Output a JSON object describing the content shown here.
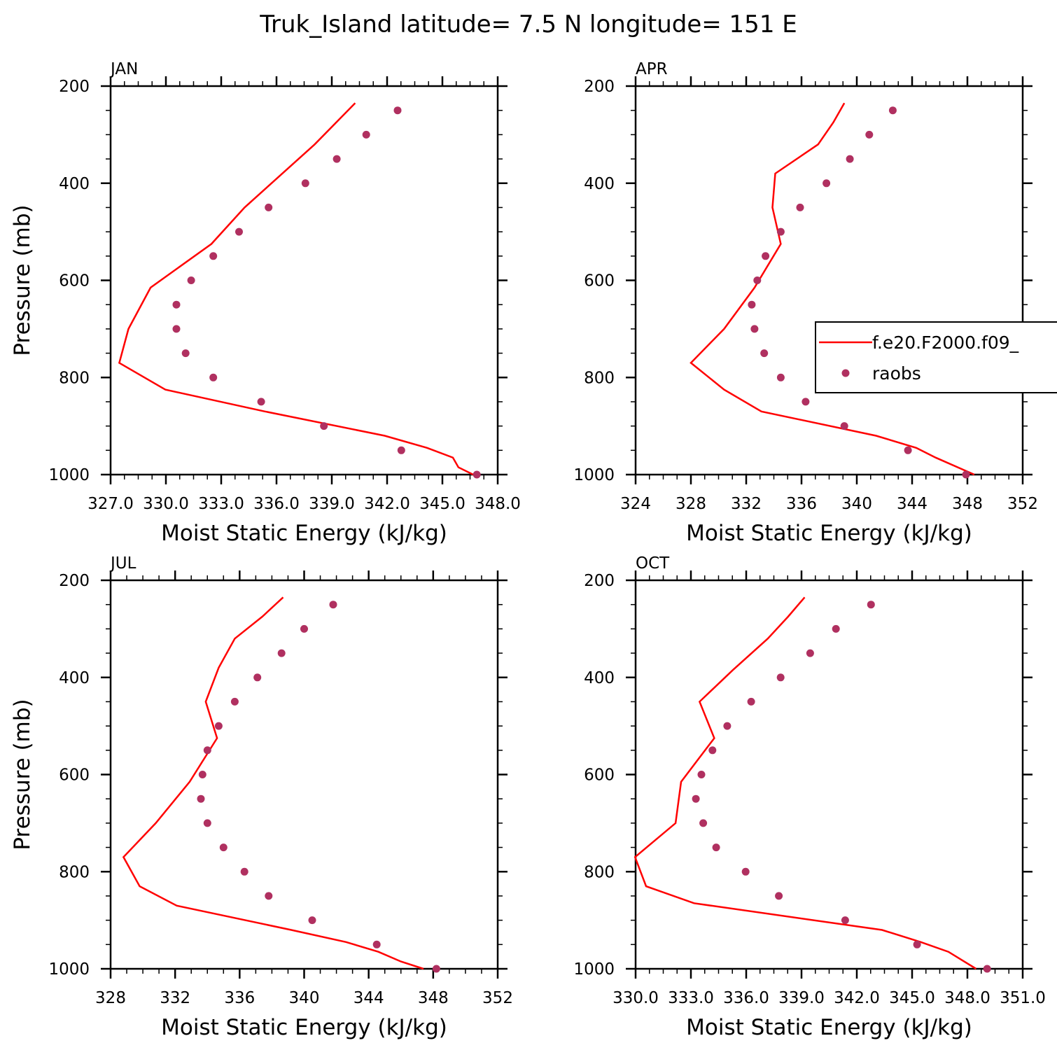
{
  "title": "Truk_Island  latitude= 7.5 N longitude= 151 E",
  "legend": {
    "model_label": "f.e20.F2000.f09_",
    "obs_label": "raobs"
  },
  "colors": {
    "model_line": "#ff0000",
    "obs_marker": "#b03060",
    "axes": "#000000",
    "background": "#ffffff"
  },
  "chart_data": [
    {
      "type": "line",
      "panel_label": "JAN",
      "xlabel": "Moist Static Energy (kJ/kg)",
      "ylabel": "Pressure (mb)",
      "xlim": [
        327.03,
        348.03
      ],
      "ylim": [
        200,
        1000
      ],
      "y_inverted": true,
      "xtick_labels": [
        "327.0",
        "330.0",
        "333.0",
        "336.0",
        "339.0",
        "342.0",
        "345.0",
        "348.0"
      ],
      "ytick_labels": [
        "200",
        "400",
        "600",
        "800",
        "1000"
      ],
      "series": [
        {
          "name": "f.e20.F2000.f09_",
          "kind": "line",
          "pressure": [
            1000,
            985,
            965,
            945,
            920,
            870,
            825,
            770,
            700,
            615,
            525,
            450,
            320,
            235
          ],
          "values": [
            346.7,
            345.9,
            345.6,
            344.2,
            341.9,
            335.4,
            330.0,
            327.5,
            328.0,
            329.2,
            332.5,
            334.3,
            338.1,
            340.3
          ]
        },
        {
          "name": "raobs",
          "kind": "scatter",
          "pressure": [
            1000,
            950,
            900,
            850,
            800,
            750,
            700,
            650,
            600,
            550,
            500,
            450,
            400,
            350,
            300,
            250
          ],
          "values": [
            346.9,
            342.8,
            338.6,
            335.2,
            332.6,
            331.1,
            330.6,
            330.6,
            331.4,
            332.6,
            334.0,
            335.6,
            337.6,
            339.3,
            340.9,
            342.6
          ]
        }
      ]
    },
    {
      "type": "line",
      "panel_label": "APR",
      "xlabel": "Moist Static Energy (kJ/kg)",
      "ylabel": "",
      "xlim": [
        324,
        352
      ],
      "ylim": [
        200,
        1000
      ],
      "y_inverted": true,
      "xtick_labels": [
        "324",
        "328",
        "332",
        "336",
        "340",
        "344",
        "348",
        "352"
      ],
      "ytick_labels": [
        "200",
        "400",
        "600",
        "800",
        "1000"
      ],
      "series": [
        {
          "name": "f.e20.F2000.f09_",
          "kind": "line",
          "pressure": [
            1000,
            965,
            945,
            920,
            870,
            825,
            770,
            700,
            615,
            525,
            450,
            380,
            320,
            275,
            235
          ],
          "values": [
            348.5,
            345.7,
            344.3,
            341.4,
            333.1,
            330.4,
            328.0,
            330.4,
            332.6,
            334.5,
            333.9,
            334.1,
            337.2,
            338.3,
            339.1
          ]
        },
        {
          "name": "raobs",
          "kind": "scatter",
          "pressure": [
            1000,
            950,
            900,
            850,
            800,
            750,
            700,
            650,
            600,
            550,
            500,
            450,
            400,
            350,
            300,
            250
          ],
          "values": [
            347.9,
            343.7,
            339.1,
            336.3,
            334.5,
            333.3,
            332.6,
            332.4,
            332.8,
            333.4,
            334.5,
            335.9,
            337.8,
            339.5,
            340.9,
            342.6
          ]
        }
      ]
    },
    {
      "type": "line",
      "panel_label": "JUL",
      "xlabel": "Moist Static Energy (kJ/kg)",
      "ylabel": "Pressure (mb)",
      "xlim": [
        328,
        352
      ],
      "ylim": [
        200,
        1000
      ],
      "y_inverted": true,
      "xtick_labels": [
        "328",
        "332",
        "336",
        "340",
        "344",
        "348",
        "352"
      ],
      "ytick_labels": [
        "200",
        "400",
        "600",
        "800",
        "1000"
      ],
      "series": [
        {
          "name": "f.e20.F2000.f09_",
          "kind": "line",
          "pressure": [
            1000,
            985,
            965,
            945,
            920,
            870,
            830,
            770,
            700,
            615,
            525,
            450,
            380,
            320,
            275,
            235
          ],
          "values": [
            347.4,
            346.0,
            344.6,
            342.6,
            339.2,
            332.1,
            329.8,
            328.8,
            330.8,
            332.9,
            334.6,
            333.9,
            334.7,
            335.7,
            337.4,
            338.7
          ]
        },
        {
          "name": "raobs",
          "kind": "scatter",
          "pressure": [
            1000,
            950,
            900,
            850,
            800,
            750,
            700,
            650,
            600,
            550,
            500,
            450,
            400,
            350,
            300,
            250
          ],
          "values": [
            348.2,
            344.5,
            340.5,
            337.8,
            336.3,
            335.0,
            334.0,
            333.6,
            333.7,
            334.0,
            334.7,
            335.7,
            337.1,
            338.6,
            340.0,
            341.8
          ]
        }
      ]
    },
    {
      "type": "line",
      "panel_label": "OCT",
      "xlabel": "Moist Static Energy (kJ/kg)",
      "ylabel": "",
      "xlim": [
        330.03,
        351.03
      ],
      "ylim": [
        200,
        1000
      ],
      "y_inverted": true,
      "xtick_labels": [
        "330.0",
        "333.0",
        "336.0",
        "339.0",
        "342.0",
        "345.0",
        "348.0",
        "351.0"
      ],
      "ytick_labels": [
        "200",
        "400",
        "600",
        "800",
        "1000"
      ],
      "series": [
        {
          "name": "f.e20.F2000.f09_",
          "kind": "line",
          "pressure": [
            1000,
            965,
            945,
            920,
            865,
            830,
            770,
            700,
            615,
            525,
            450,
            385,
            320,
            275,
            235
          ],
          "values": [
            348.5,
            347.0,
            345.5,
            343.4,
            333.2,
            330.6,
            330.0,
            332.2,
            332.5,
            334.3,
            333.5,
            335.3,
            337.2,
            338.3,
            339.2
          ]
        },
        {
          "name": "raobs",
          "kind": "scatter",
          "pressure": [
            1000,
            950,
            900,
            850,
            800,
            750,
            700,
            650,
            600,
            550,
            500,
            450,
            400,
            350,
            300,
            250
          ],
          "values": [
            349.1,
            345.3,
            341.4,
            337.8,
            336.0,
            334.4,
            333.7,
            333.3,
            333.6,
            334.2,
            335.0,
            336.3,
            337.9,
            339.5,
            340.9,
            342.8
          ]
        }
      ]
    }
  ]
}
